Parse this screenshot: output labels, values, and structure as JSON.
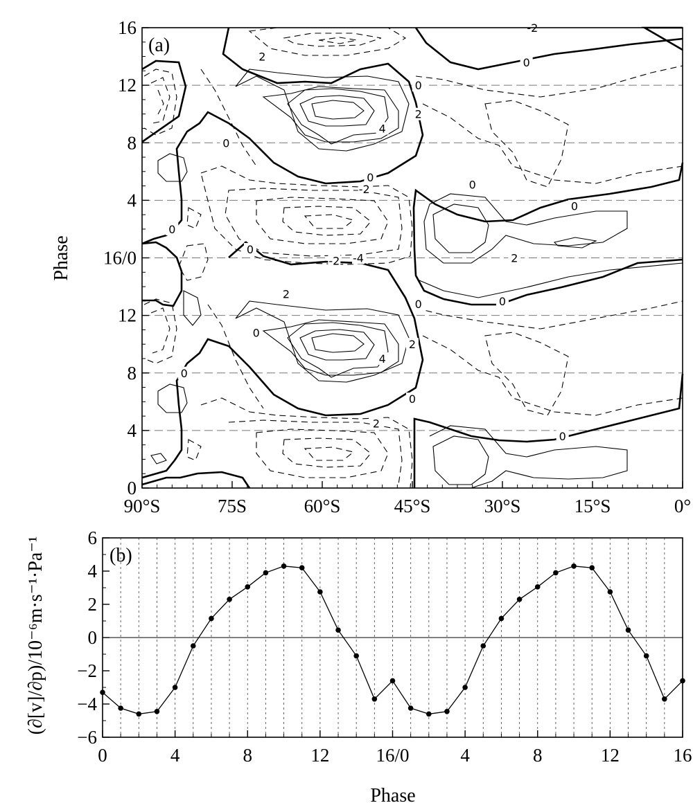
{
  "chart_data": [
    {
      "panel": "a",
      "type": "contour",
      "panel_label": "(a)",
      "xlabel": "",
      "ylabel": "Phase",
      "x_ticks": [
        "90°S",
        "75S",
        "60°S",
        "45°S",
        "30°S",
        "15°S",
        "0°"
      ],
      "x_tick_values": [
        -90,
        -75,
        -60,
        -45,
        -30,
        -15,
        0
      ],
      "y_ticks": [
        "0",
        "4",
        "8",
        "12",
        "16/0",
        "4",
        "8",
        "12",
        "16"
      ],
      "y_tick_values": [
        0,
        4,
        8,
        12,
        16,
        20,
        24,
        28,
        32
      ],
      "xlim": [
        -90,
        0
      ],
      "ylim": [
        0,
        32
      ],
      "grid": "dashed horizontal lines at phases 4, 8, 12",
      "contour_style": "solid positive, dashed negative, thick zero line",
      "contour_labels": [
        {
          "text": "0",
          "lat": -20,
          "phase": 3.6
        },
        {
          "text": "2",
          "lat": -51,
          "phase": 4.5
        },
        {
          "text": "0",
          "lat": -45,
          "phase": 6.2
        },
        {
          "text": "4",
          "lat": -50,
          "phase": 9.0
        },
        {
          "text": "2",
          "lat": -45,
          "phase": 10.0
        },
        {
          "text": "0",
          "lat": -44,
          "phase": 12.8
        },
        {
          "text": "0",
          "lat": -30,
          "phase": 13.0
        },
        {
          "text": "2",
          "lat": -66,
          "phase": 13.5
        },
        {
          "text": "0",
          "lat": -83,
          "phase": 8.0
        },
        {
          "text": "0",
          "lat": -71,
          "phase": 10.8
        },
        {
          "text": "-4",
          "lat": -54,
          "phase": 16.0
        },
        {
          "text": "-2",
          "lat": -58,
          "phase": 15.8
        },
        {
          "text": "2",
          "lat": -28,
          "phase": 16.0
        },
        {
          "text": "0",
          "lat": -85,
          "phase": 18.0
        },
        {
          "text": "0",
          "lat": -72,
          "phase": 16.6
        },
        {
          "text": "0",
          "lat": -18,
          "phase": 19.6
        },
        {
          "text": "0",
          "lat": -35,
          "phase": 21.1
        },
        {
          "text": "-2",
          "lat": -53,
          "phase": 20.8
        },
        {
          "text": "0",
          "lat": -52,
          "phase": 21.6
        },
        {
          "text": "0",
          "lat": -76,
          "phase": 24.0
        },
        {
          "text": "4",
          "lat": -50,
          "phase": 25.0
        },
        {
          "text": "2",
          "lat": -44,
          "phase": 26.0
        },
        {
          "text": "0",
          "lat": -44,
          "phase": 28.0
        },
        {
          "text": "0",
          "lat": -26,
          "phase": 29.6
        },
        {
          "text": "2",
          "lat": -70,
          "phase": 30.0
        },
        {
          "text": "-2",
          "lat": -25,
          "phase": 32.0
        }
      ]
    },
    {
      "panel": "b",
      "type": "line",
      "panel_label": "(b)",
      "xlabel": "Phase",
      "ylabel": "(∂[v]/∂p)/10⁻⁶m·s⁻¹·Pa⁻¹",
      "x_ticks": [
        "0",
        "4",
        "8",
        "12",
        "16/0",
        "4",
        "8",
        "12",
        "16"
      ],
      "x_tick_values": [
        0,
        4,
        8,
        12,
        16,
        20,
        24,
        28,
        32
      ],
      "y_ticks": [
        "6",
        "4",
        "2",
        "0",
        "−2",
        "−4",
        "−6"
      ],
      "y_tick_values": [
        6,
        4,
        2,
        0,
        -2,
        -4,
        -6
      ],
      "xlim": [
        0,
        32
      ],
      "ylim": [
        -6,
        6
      ],
      "grid": "dotted vertical lines at each integer phase; solid zero line",
      "x": [
        0,
        1,
        2,
        3,
        4,
        5,
        6,
        7,
        8,
        9,
        10,
        11,
        12,
        13,
        14,
        15,
        16,
        17,
        18,
        19,
        20,
        21,
        22,
        23,
        24,
        25,
        26,
        27,
        28,
        29,
        30,
        31,
        32
      ],
      "values": [
        -3.3,
        -4.25,
        -4.6,
        -4.45,
        -3.0,
        -0.5,
        1.15,
        2.3,
        3.05,
        3.9,
        4.3,
        4.2,
        2.75,
        0.45,
        -1.1,
        -3.7,
        -2.6,
        -4.25,
        -4.6,
        -4.45,
        -3.0,
        -0.5,
        1.15,
        2.3,
        3.05,
        3.9,
        4.3,
        4.2,
        2.75,
        0.45,
        -1.1,
        -3.7,
        -2.6
      ],
      "marker": "filled circle",
      "line_color": "#000000"
    }
  ]
}
